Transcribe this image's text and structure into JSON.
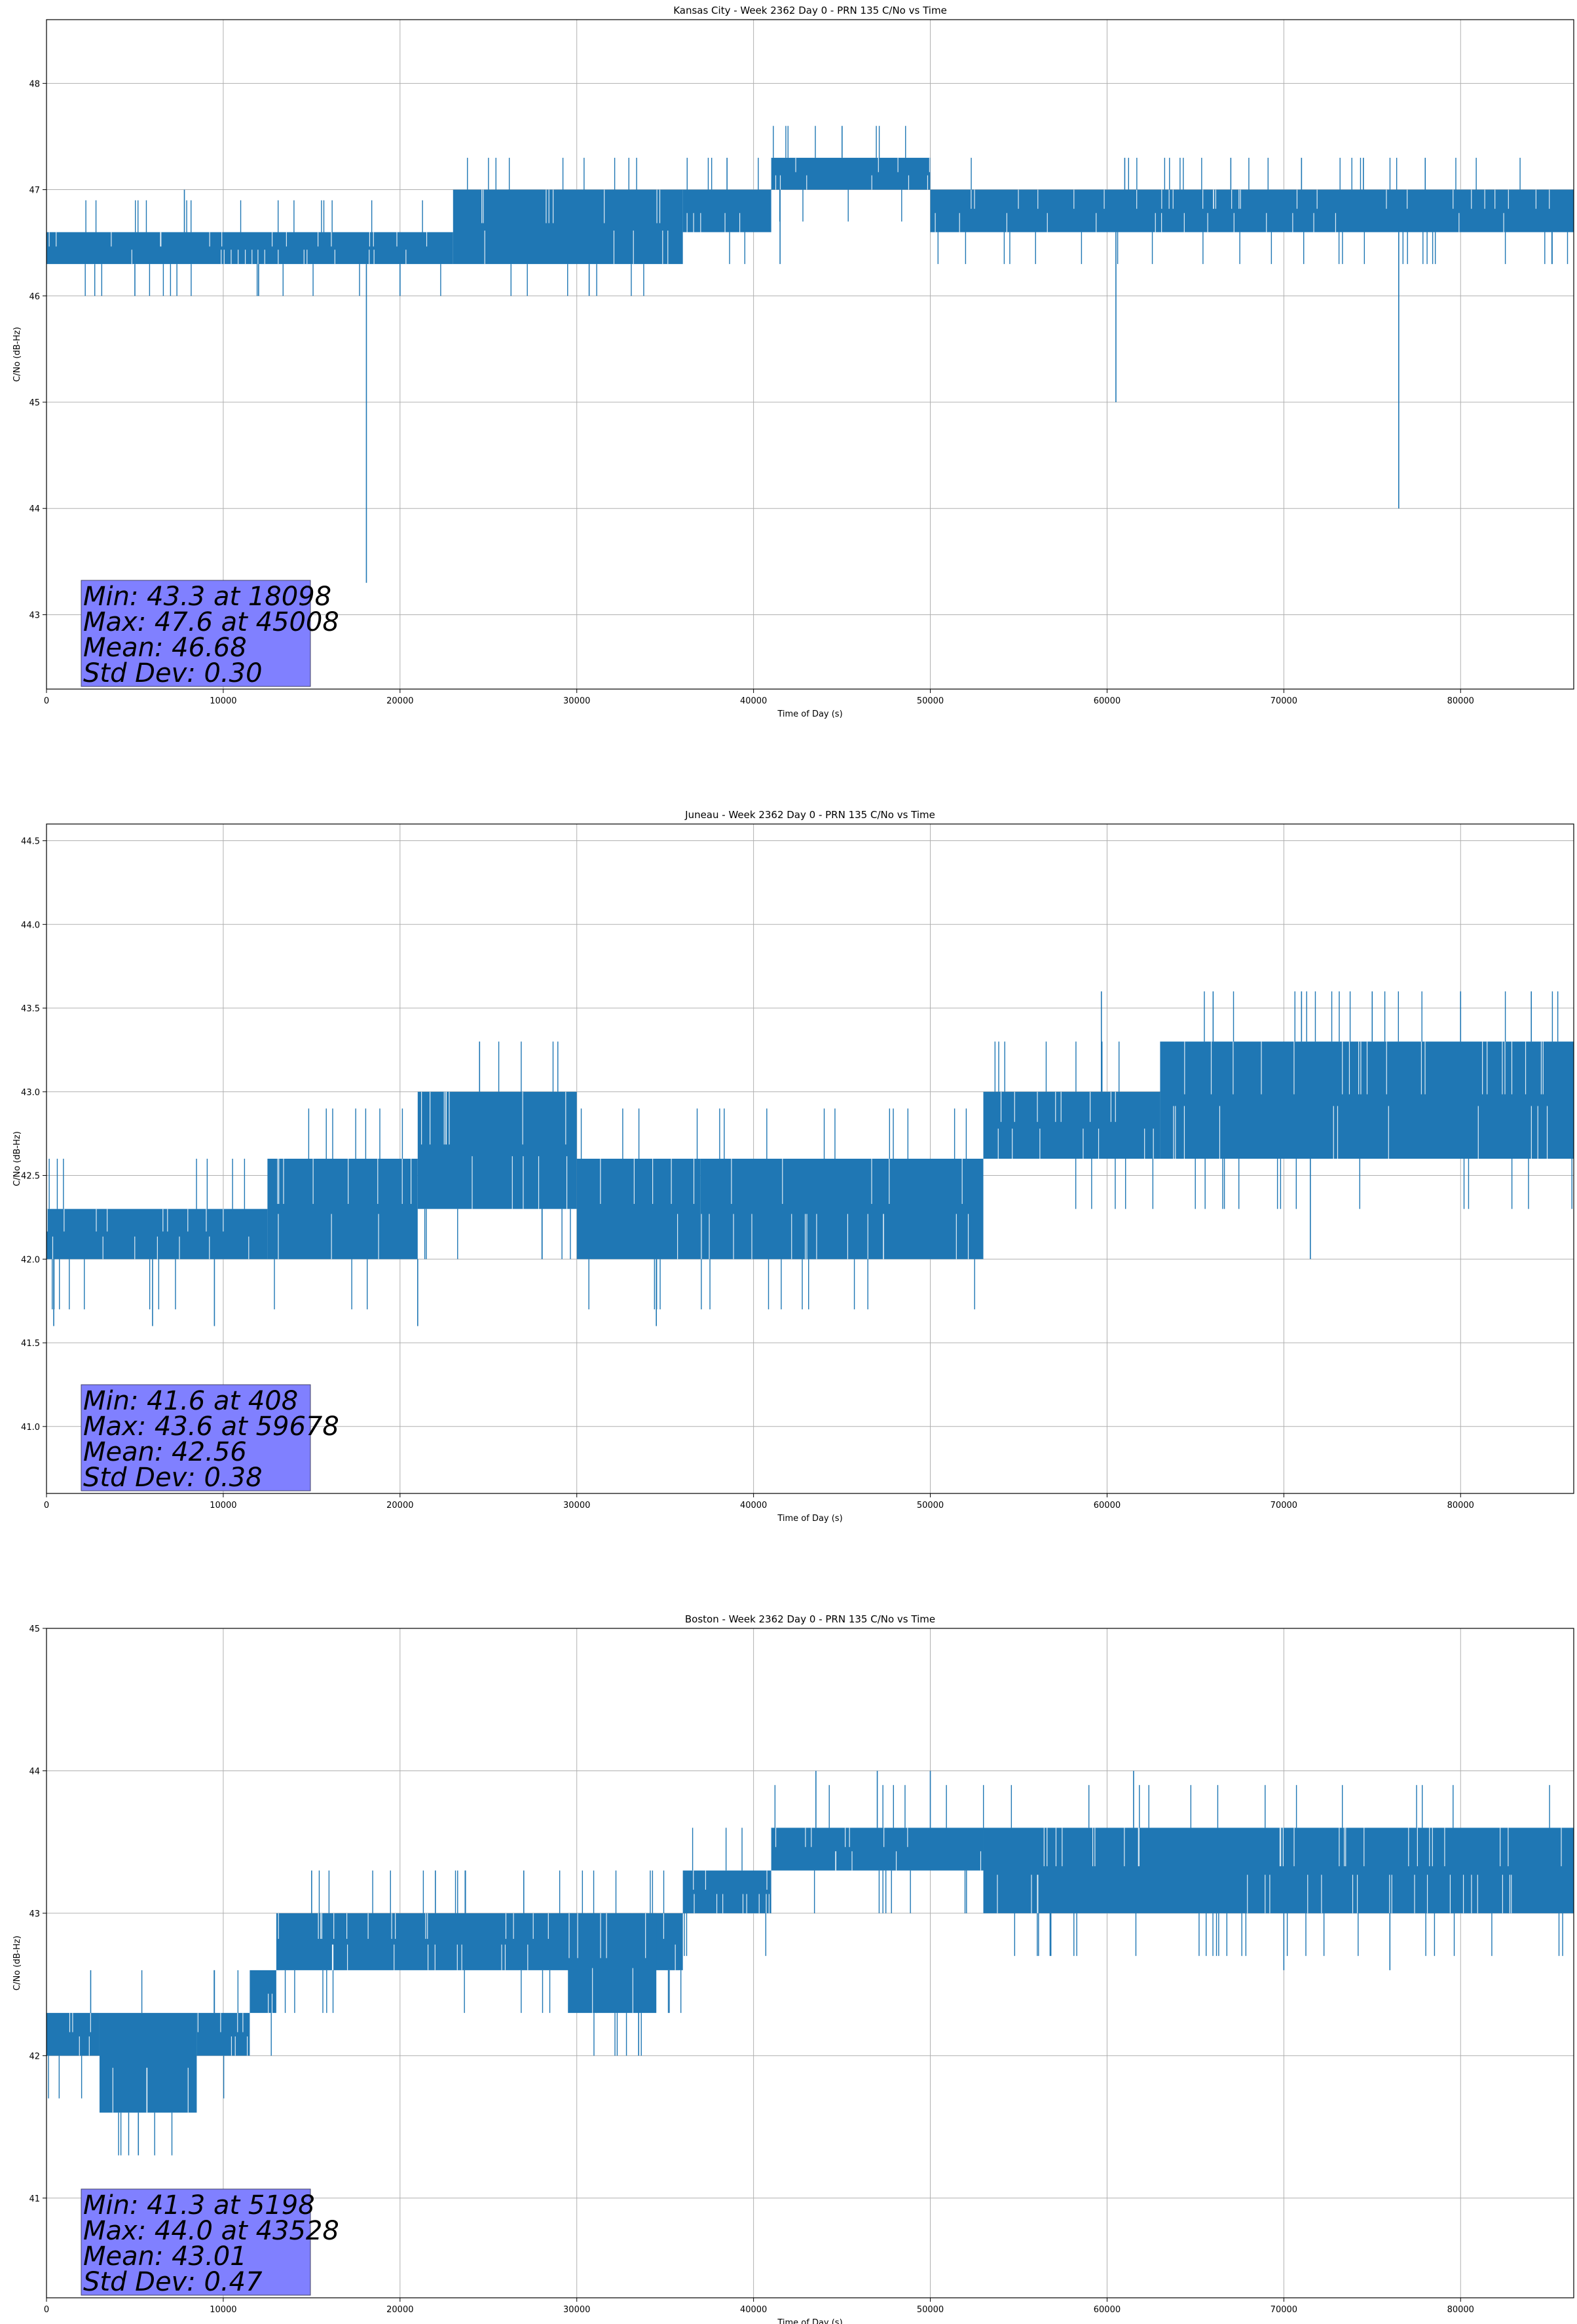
{
  "chart_data": [
    {
      "type": "line",
      "title": "Kansas City - Week 2362 Day 0 - PRN 135 C/No vs Time",
      "xlabel": "Time of Day (s)",
      "ylabel": "C/No (dB-Hz)",
      "xlim": [
        0,
        86400
      ],
      "ylim": [
        42.3,
        48.6
      ],
      "xticks": [
        "0",
        "10000",
        "20000",
        "30000",
        "40000",
        "50000",
        "60000",
        "70000",
        "80000"
      ],
      "xtick_values": [
        0,
        10000,
        20000,
        30000,
        40000,
        50000,
        60000,
        70000,
        80000
      ],
      "yticks": [
        "43",
        "44",
        "45",
        "46",
        "47",
        "48"
      ],
      "ytick_values": [
        43,
        44,
        45,
        46,
        47,
        48
      ],
      "grid": true,
      "color": "#1f77b4",
      "bands": [
        {
          "x0": 0,
          "x1": 23000,
          "low": 46.3,
          "high": 46.6
        },
        {
          "x0": 23000,
          "x1": 36000,
          "low": 46.3,
          "high": 47.0
        },
        {
          "x0": 36000,
          "x1": 41000,
          "low": 46.6,
          "high": 47.0
        },
        {
          "x0": 41000,
          "x1": 50000,
          "low": 47.0,
          "high": 47.3
        },
        {
          "x0": 50000,
          "x1": 86400,
          "low": 46.6,
          "high": 47.0
        }
      ],
      "excursions": [
        {
          "x": 18098,
          "y": 43.3
        },
        {
          "x": 45008,
          "y": 47.6
        },
        {
          "x": 60500,
          "y": 45.0
        },
        {
          "x": 76500,
          "y": 44.0
        },
        {
          "x": 7800,
          "y": 47.0
        },
        {
          "x": 38500,
          "y": 47.3
        },
        {
          "x": 61000,
          "y": 47.3
        },
        {
          "x": 67000,
          "y": 47.3
        },
        {
          "x": 71000,
          "y": 47.3
        },
        {
          "x": 74500,
          "y": 47.3
        },
        {
          "x": 78000,
          "y": 47.3
        },
        {
          "x": 5000,
          "y": 46.0
        },
        {
          "x": 12000,
          "y": 46.0
        },
        {
          "x": 20000,
          "y": 46.0
        },
        {
          "x": 30700,
          "y": 46.0
        },
        {
          "x": 41500,
          "y": 46.3
        }
      ],
      "stats": {
        "min": "Min: 43.3 at 18098",
        "max": "Max: 47.6 at 45008",
        "mean": "Mean: 46.68",
        "std": "Std Dev: 0.30"
      }
    },
    {
      "type": "line",
      "title": "Juneau - Week 2362 Day 0 - PRN 135 C/No vs Time",
      "xlabel": "Time of Day (s)",
      "ylabel": "C/No (dB-Hz)",
      "xlim": [
        0,
        86400
      ],
      "ylim": [
        40.6,
        44.6
      ],
      "xticks": [
        "0",
        "10000",
        "20000",
        "30000",
        "40000",
        "50000",
        "60000",
        "70000",
        "80000"
      ],
      "xtick_values": [
        0,
        10000,
        20000,
        30000,
        40000,
        50000,
        60000,
        70000,
        80000
      ],
      "yticks": [
        "41.0",
        "41.5",
        "42.0",
        "42.5",
        "43.0",
        "43.5",
        "44.0",
        "44.5"
      ],
      "ytick_values": [
        41.0,
        41.5,
        42.0,
        42.5,
        43.0,
        43.5,
        44.0,
        44.5
      ],
      "grid": true,
      "color": "#1f77b4",
      "bands": [
        {
          "x0": 0,
          "x1": 12500,
          "low": 42.0,
          "high": 42.3
        },
        {
          "x0": 12500,
          "x1": 21000,
          "low": 42.0,
          "high": 42.6
        },
        {
          "x0": 21000,
          "x1": 30000,
          "low": 42.3,
          "high": 43.0
        },
        {
          "x0": 30000,
          "x1": 37000,
          "low": 42.0,
          "high": 42.6
        },
        {
          "x0": 37000,
          "x1": 53000,
          "low": 42.0,
          "high": 42.6
        },
        {
          "x0": 53000,
          "x1": 63000,
          "low": 42.6,
          "high": 43.0
        },
        {
          "x0": 63000,
          "x1": 86400,
          "low": 42.6,
          "high": 43.3
        }
      ],
      "excursions": [
        {
          "x": 408,
          "y": 41.6
        },
        {
          "x": 59678,
          "y": 43.6
        },
        {
          "x": 24500,
          "y": 43.3
        },
        {
          "x": 66000,
          "y": 43.6
        },
        {
          "x": 71000,
          "y": 43.6
        },
        {
          "x": 75000,
          "y": 43.6
        },
        {
          "x": 80000,
          "y": 43.6
        },
        {
          "x": 84000,
          "y": 43.6
        },
        {
          "x": 71500,
          "y": 42.0
        },
        {
          "x": 34500,
          "y": 41.6
        },
        {
          "x": 21000,
          "y": 41.6
        },
        {
          "x": 9500,
          "y": 41.6
        },
        {
          "x": 6000,
          "y": 41.6
        }
      ],
      "stats": {
        "min": "Min: 41.6 at 408",
        "max": "Max: 43.6 at 59678",
        "mean": "Mean: 42.56",
        "std": "Std Dev: 0.38"
      }
    },
    {
      "type": "line",
      "title": "Boston - Week 2362 Day 0 - PRN 135 C/No vs Time",
      "xlabel": "Time of Day (s)",
      "ylabel": "C/No (dB-Hz)",
      "xlim": [
        0,
        86400
      ],
      "ylim": [
        40.3,
        45.0
      ],
      "xticks": [
        "0",
        "10000",
        "20000",
        "30000",
        "40000",
        "50000",
        "60000",
        "70000",
        "80000"
      ],
      "xtick_values": [
        0,
        10000,
        20000,
        30000,
        40000,
        50000,
        60000,
        70000,
        80000
      ],
      "yticks": [
        "41",
        "42",
        "43",
        "44",
        "45"
      ],
      "ytick_values": [
        41,
        42,
        43,
        44,
        45
      ],
      "grid": true,
      "color": "#1f77b4",
      "bands": [
        {
          "x0": 0,
          "x1": 3000,
          "low": 42.0,
          "high": 42.3
        },
        {
          "x0": 3000,
          "x1": 8500,
          "low": 41.6,
          "high": 42.3
        },
        {
          "x0": 8500,
          "x1": 11500,
          "low": 42.0,
          "high": 42.3
        },
        {
          "x0": 11500,
          "x1": 13000,
          "low": 42.3,
          "high": 42.6
        },
        {
          "x0": 13000,
          "x1": 36000,
          "low": 42.6,
          "high": 43.0
        },
        {
          "x0": 29500,
          "x1": 34500,
          "low": 42.3,
          "high": 43.0
        },
        {
          "x0": 36000,
          "x1": 41000,
          "low": 43.0,
          "high": 43.3
        },
        {
          "x0": 41000,
          "x1": 53000,
          "low": 43.3,
          "high": 43.6
        },
        {
          "x0": 53000,
          "x1": 86400,
          "low": 43.0,
          "high": 43.6
        }
      ],
      "excursions": [
        {
          "x": 5198,
          "y": 41.3
        },
        {
          "x": 43528,
          "y": 44.0
        },
        {
          "x": 47000,
          "y": 44.0
        },
        {
          "x": 50000,
          "y": 44.0
        },
        {
          "x": 61500,
          "y": 44.0
        },
        {
          "x": 2500,
          "y": 42.6
        },
        {
          "x": 9500,
          "y": 42.6
        },
        {
          "x": 15000,
          "y": 43.3
        },
        {
          "x": 22000,
          "y": 43.3
        },
        {
          "x": 27000,
          "y": 43.3
        },
        {
          "x": 33500,
          "y": 42.0
        },
        {
          "x": 70000,
          "y": 42.6
        },
        {
          "x": 76000,
          "y": 42.6
        }
      ],
      "stats": {
        "min": "Min: 41.3 at 5198",
        "max": "Max: 44.0 at 43528",
        "mean": "Mean: 43.01",
        "std": "Std Dev: 0.47"
      }
    }
  ]
}
